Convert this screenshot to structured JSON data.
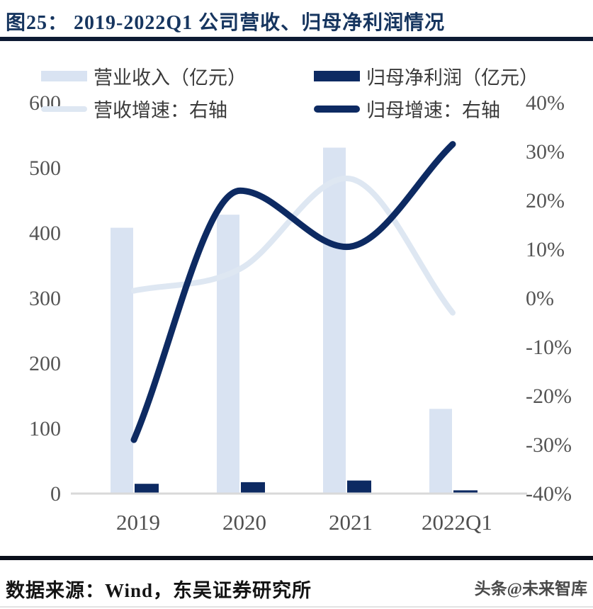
{
  "title": "图25：  2019-2022Q1 公司营收、归母净利润情况",
  "source": "数据来源：Wind，东吴证券研究所",
  "watermark": "头条@未来智库",
  "colors": {
    "navy": "#0d2a62",
    "light_blue_bar": "#d9e3f2",
    "light_blue_line": "#dee7f2",
    "title_navy": "#16355f",
    "axis_line_gray": "#d9d9d9",
    "axis_label_gray": "#555555",
    "top_rule": "#0d1a33",
    "bottom_rule": "#0a0f1a"
  },
  "legend": [
    {
      "label": "营业收入（亿元）",
      "type": "bar",
      "color": "#d9e3f2"
    },
    {
      "label": "归母净利润（亿元）",
      "type": "bar",
      "color": "#0d2a62"
    },
    {
      "label": "营收增速：右轴",
      "type": "line",
      "color": "#dee7f2"
    },
    {
      "label": "归母增速：右轴",
      "type": "line",
      "color": "#0d2a62"
    }
  ],
  "chart_data": {
    "type": "bar",
    "subtype": "bars-with-smooth-lines-dual-axis",
    "categories": [
      "2019",
      "2020",
      "2021",
      "2022Q1"
    ],
    "series": [
      {
        "name": "营业收入（亿元）",
        "type": "bar",
        "axis": "left",
        "color": "#d9e3f2",
        "values": [
          408,
          428,
          531,
          130
        ]
      },
      {
        "name": "归母净利润（亿元）",
        "type": "bar",
        "axis": "left",
        "color": "#0d2a62",
        "values": [
          15,
          17.5,
          20,
          5
        ]
      },
      {
        "name": "营收增速：右轴",
        "type": "line",
        "axis": "right",
        "color": "#dee7f2",
        "values": [
          1.5,
          6,
          24.5,
          -3
        ]
      },
      {
        "name": "归母增速：右轴",
        "type": "line",
        "axis": "right",
        "color": "#0d2a62",
        "values": [
          -29,
          22,
          10.5,
          31.5
        ]
      }
    ],
    "left_axis": {
      "label": "亿元",
      "min": 0,
      "max": 600,
      "ticks": [
        0,
        100,
        200,
        300,
        400,
        500,
        600
      ]
    },
    "right_axis": {
      "label": "%",
      "min": -40,
      "max": 40,
      "tick_labels": [
        "40%",
        "30%",
        "20%",
        "10%",
        "0%",
        "-10%",
        "-20%",
        "-30%",
        "-40%"
      ]
    },
    "grid": false,
    "legend_position": "top"
  }
}
